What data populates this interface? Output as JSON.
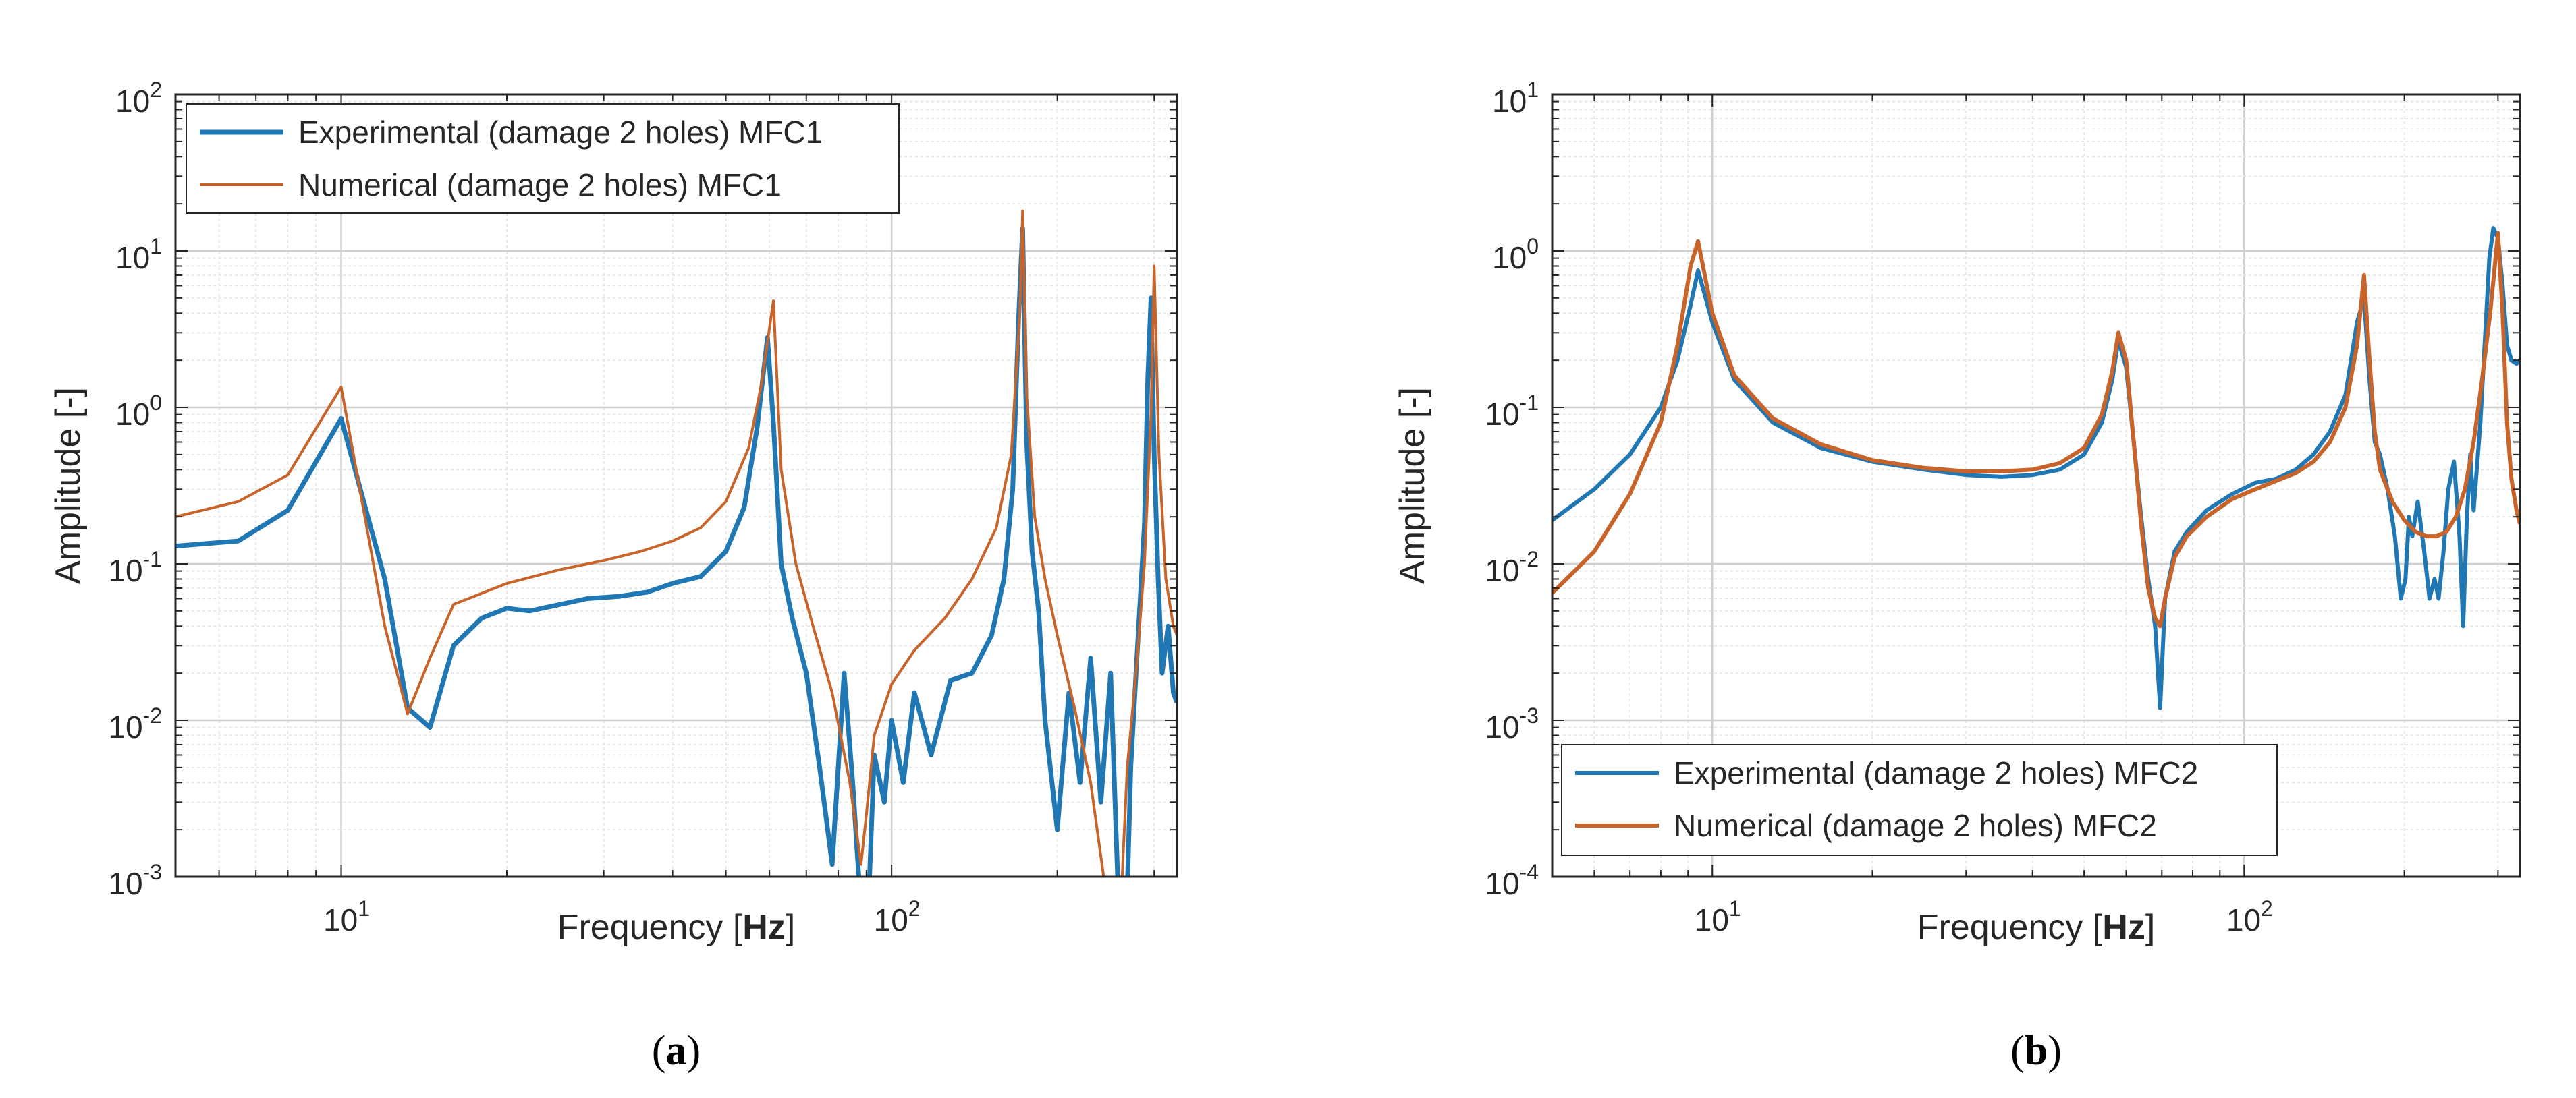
{
  "colors": {
    "experimental": "#1f77b4",
    "numerical": "#c8642a",
    "grid": "#dcdcdc",
    "axis": "#262626"
  },
  "chart_data": [
    {
      "panel": "a",
      "type": "line",
      "xscale": "log",
      "yscale": "log",
      "xlim": [
        5,
        330
      ],
      "ylim": [
        0.001,
        100
      ],
      "xlabel_text": "Frequency ",
      "xlabel_unit": "Hz",
      "ylabel": "Amplitude [-]",
      "caption_letter": "a",
      "grid": true,
      "legend_position": "top-left",
      "x_ticks": [
        {
          "value": 10,
          "base": "10",
          "exp": "1"
        },
        {
          "value": 100,
          "base": "10",
          "exp": "2"
        }
      ],
      "y_ticks": [
        {
          "value": 0.001,
          "base": "10",
          "exp": "-3"
        },
        {
          "value": 0.01,
          "base": "10",
          "exp": "-2"
        },
        {
          "value": 0.1,
          "base": "10",
          "exp": "-1"
        },
        {
          "value": 1,
          "base": "10",
          "exp": "0"
        },
        {
          "value": 10,
          "base": "10",
          "exp": "1"
        },
        {
          "value": 100,
          "base": "10",
          "exp": "2"
        }
      ],
      "series": [
        {
          "name": "Experimental (damage 2 holes) MFC1",
          "color_key": "experimental",
          "width": 7,
          "x": [
            5,
            6.5,
            8,
            10,
            12,
            13.2,
            14.5,
            16,
            18,
            20,
            22,
            25,
            28,
            32,
            36,
            40,
            45,
            50,
            54,
            57,
            59.5,
            61,
            63,
            66,
            70,
            74,
            78,
            82,
            85,
            88,
            90,
            93,
            97,
            100,
            105,
            110,
            118,
            128,
            140,
            152,
            160,
            166,
            170,
            173,
            176,
            180,
            185,
            190,
            200,
            210,
            220,
            230,
            240,
            250,
            258,
            266,
            272,
            278,
            283,
            288,
            292,
            296,
            300,
            305,
            310,
            318,
            325,
            330
          ],
          "y": [
            0.13,
            0.14,
            0.22,
            0.85,
            0.08,
            0.012,
            0.009,
            0.03,
            0.045,
            0.052,
            0.05,
            0.055,
            0.06,
            0.062,
            0.066,
            0.075,
            0.083,
            0.12,
            0.23,
            0.75,
            2.8,
            0.8,
            0.1,
            0.045,
            0.02,
            0.005,
            0.0012,
            0.02,
            0.004,
            0.0006,
            0.0003,
            0.006,
            0.003,
            0.01,
            0.004,
            0.015,
            0.006,
            0.018,
            0.02,
            0.035,
            0.08,
            0.3,
            3.5,
            14,
            0.6,
            0.12,
            0.05,
            0.01,
            0.002,
            0.015,
            0.004,
            0.025,
            0.003,
            0.02,
            0.0008,
            0.0003,
            0.005,
            0.02,
            0.06,
            0.18,
            1.5,
            5,
            0.5,
            0.08,
            0.02,
            0.04,
            0.015,
            0.013
          ]
        },
        {
          "name": "Numerical (damage 2 holes) MFC1",
          "color_key": "numerical",
          "width": 4,
          "x": [
            5,
            6.5,
            8,
            10,
            12,
            13.2,
            14.5,
            16,
            20,
            25,
            30,
            35,
            40,
            45,
            50,
            55,
            58,
            61,
            63,
            67,
            72,
            78,
            84,
            88,
            90,
            93,
            100,
            110,
            125,
            140,
            155,
            165,
            171,
            173,
            176,
            182,
            190,
            200,
            215,
            230,
            245,
            255,
            262,
            268,
            278,
            288,
            296,
            300,
            306,
            315,
            325,
            330
          ],
          "y": [
            0.2,
            0.25,
            0.37,
            1.35,
            0.04,
            0.011,
            0.025,
            0.055,
            0.075,
            0.092,
            0.105,
            0.12,
            0.14,
            0.17,
            0.25,
            0.55,
            1.4,
            4.8,
            0.4,
            0.1,
            0.04,
            0.015,
            0.004,
            0.0012,
            0.0025,
            0.008,
            0.017,
            0.028,
            0.045,
            0.08,
            0.17,
            0.5,
            4,
            18,
            1.2,
            0.2,
            0.08,
            0.035,
            0.012,
            0.004,
            0.0008,
            0.00025,
            0.0009,
            0.005,
            0.02,
            0.1,
            0.9,
            8,
            0.5,
            0.08,
            0.04,
            0.035
          ]
        }
      ]
    },
    {
      "panel": "b",
      "type": "line",
      "xscale": "log",
      "yscale": "log",
      "xlim": [
        5,
        330
      ],
      "ylim": [
        0.0001,
        10
      ],
      "xlabel_text": "Frequency ",
      "xlabel_unit": "Hz",
      "ylabel": "Amplitude [-]",
      "caption_letter": "b",
      "grid": true,
      "legend_position": "bottom-left",
      "x_ticks": [
        {
          "value": 10,
          "base": "10",
          "exp": "1"
        },
        {
          "value": 100,
          "base": "10",
          "exp": "2"
        }
      ],
      "y_ticks": [
        {
          "value": 0.0001,
          "base": "10",
          "exp": "-4"
        },
        {
          "value": 0.001,
          "base": "10",
          "exp": "-3"
        },
        {
          "value": 0.01,
          "base": "10",
          "exp": "-2"
        },
        {
          "value": 0.1,
          "base": "10",
          "exp": "-1"
        },
        {
          "value": 1,
          "base": "10",
          "exp": "0"
        },
        {
          "value": 10,
          "base": "10",
          "exp": "1"
        }
      ],
      "series": [
        {
          "name": "Experimental (damage 2 holes) MFC2",
          "color_key": "experimental",
          "width": 6,
          "x": [
            5,
            6,
            7,
            8,
            8.6,
            9.1,
            9.4,
            10,
            11,
            13,
            16,
            20,
            25,
            30,
            35,
            40,
            45,
            50,
            54,
            56.5,
            58,
            60,
            62,
            64,
            66,
            68,
            69.5,
            71,
            74,
            78,
            85,
            95,
            105,
            115,
            125,
            135,
            145,
            155,
            163,
            168,
            172,
            176,
            180,
            186,
            192,
            197,
            201,
            204,
            207,
            212,
            218,
            223,
            228,
            232,
            237,
            242,
            248,
            254,
            258,
            262,
            266,
            270,
            278,
            284,
            289,
            294,
            300,
            306,
            312,
            318,
            325,
            330
          ],
          "y": [
            0.019,
            0.03,
            0.05,
            0.1,
            0.2,
            0.45,
            0.75,
            0.35,
            0.15,
            0.08,
            0.055,
            0.045,
            0.04,
            0.037,
            0.036,
            0.037,
            0.04,
            0.05,
            0.08,
            0.15,
            0.27,
            0.18,
            0.06,
            0.02,
            0.008,
            0.004,
            0.0012,
            0.006,
            0.012,
            0.016,
            0.022,
            0.028,
            0.033,
            0.035,
            0.04,
            0.05,
            0.07,
            0.12,
            0.35,
            0.5,
            0.15,
            0.06,
            0.05,
            0.03,
            0.015,
            0.006,
            0.008,
            0.02,
            0.015,
            0.025,
            0.012,
            0.006,
            0.008,
            0.006,
            0.012,
            0.03,
            0.045,
            0.015,
            0.004,
            0.018,
            0.05,
            0.022,
            0.08,
            0.3,
            0.9,
            1.4,
            1.2,
            0.6,
            0.25,
            0.2,
            0.19,
            0.2
          ]
        },
        {
          "name": "Numerical (damage 2 holes) MFC2",
          "color_key": "numerical",
          "width": 6,
          "x": [
            5,
            6,
            7,
            8,
            8.6,
            9.1,
            9.4,
            10,
            11,
            13,
            16,
            20,
            25,
            30,
            35,
            40,
            45,
            50,
            54,
            56.5,
            58,
            60,
            62,
            64,
            66,
            68,
            69.5,
            71,
            74,
            78,
            85,
            95,
            105,
            115,
            125,
            135,
            145,
            155,
            163,
            168,
            172,
            176,
            180,
            190,
            200,
            210,
            220,
            230,
            240,
            250,
            260,
            270,
            280,
            290,
            300,
            306,
            312,
            318,
            325,
            330
          ],
          "y": [
            0.0065,
            0.012,
            0.028,
            0.08,
            0.25,
            0.8,
            1.15,
            0.4,
            0.16,
            0.085,
            0.058,
            0.046,
            0.041,
            0.039,
            0.039,
            0.04,
            0.044,
            0.055,
            0.09,
            0.17,
            0.3,
            0.2,
            0.06,
            0.018,
            0.007,
            0.0045,
            0.004,
            0.006,
            0.011,
            0.015,
            0.02,
            0.026,
            0.03,
            0.034,
            0.038,
            0.045,
            0.06,
            0.1,
            0.25,
            0.7,
            0.2,
            0.07,
            0.04,
            0.025,
            0.019,
            0.016,
            0.015,
            0.015,
            0.016,
            0.02,
            0.03,
            0.06,
            0.15,
            0.4,
            1.3,
            0.4,
            0.08,
            0.035,
            0.022,
            0.018
          ]
        }
      ]
    }
  ]
}
